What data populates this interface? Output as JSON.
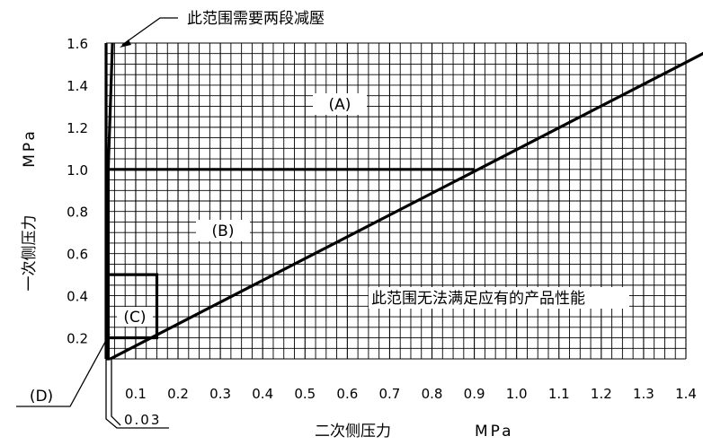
{
  "chart_data": {
    "type": "line",
    "xlim": [
      0.03,
      1.4
    ],
    "ylim": [
      0.1,
      1.6
    ],
    "x_ticks": [
      "0.1",
      "0.2",
      "0.3",
      "0.4",
      "0.5",
      "0.6",
      "0.7",
      "0.8",
      "0.9",
      "1.0",
      "1.1",
      "1.2",
      "1.3",
      "1.4"
    ],
    "y_ticks": [
      "0.2",
      "0.4",
      "0.6",
      "0.8",
      "1.0",
      "1.2",
      "1.4",
      "1.6"
    ],
    "x_label": "二次侧压力",
    "x_unit": "MPa",
    "y_label": "一次侧压力",
    "y_unit": "MPa",
    "x_special_label": "0.03",
    "grid": true,
    "series": [
      {
        "x": [
          0.03,
          0.03
        ],
        "y": [
          0.1,
          1.6
        ]
      },
      {
        "x": [
          0.04,
          1.45
        ],
        "y": [
          0.1,
          1.56
        ]
      },
      {
        "x": [
          0.03,
          0.04
        ],
        "y": [
          0.1,
          0.1
        ]
      },
      {
        "x": [
          0.035,
          0.035
        ],
        "y": [
          0.1,
          1.0
        ]
      },
      {
        "x": [
          0.035,
          0.9
        ],
        "y": [
          1.0,
          1.0
        ]
      },
      {
        "x": [
          0.035,
          0.045
        ],
        "y": [
          1.0,
          1.6
        ]
      },
      {
        "x": [
          0.03,
          0.15,
          0.15,
          0.035
        ],
        "y": [
          0.5,
          0.5,
          0.2,
          0.2
        ]
      }
    ],
    "annotations": {
      "two_stage": "此范围需要两段减壓",
      "region_a": "(A)",
      "region_b": "(B)",
      "region_c": "(C)",
      "region_d": "(D)",
      "unsatisfied": "此范围无法满足应有的产品性能"
    }
  }
}
